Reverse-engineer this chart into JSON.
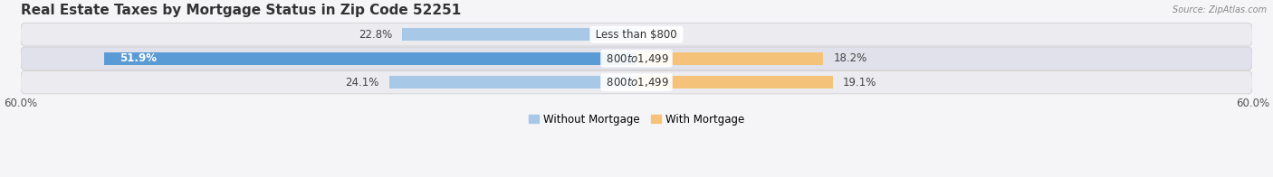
{
  "title": "Real Estate Taxes by Mortgage Status in Zip Code 52251",
  "source": "Source: ZipAtlas.com",
  "rows": [
    {
      "label": "Less than $800",
      "without": 22.8,
      "with": 0.0
    },
    {
      "label": "$800 to $1,499",
      "without": 51.9,
      "with": 18.2
    },
    {
      "label": "$800 to $1,499",
      "without": 24.1,
      "with": 19.1
    }
  ],
  "x_max": 60.0,
  "color_without": "#a8c8e8",
  "color_without_dark": "#5b9bd5",
  "color_with": "#f5c27a",
  "color_with_dark": "#ed9c3a",
  "bar_height": 0.52,
  "row_bg_colors": [
    "#ebebf0",
    "#e0e1ea",
    "#ebebf0"
  ],
  "legend_without": "Without Mortgage",
  "legend_with": "With Mortgage",
  "title_fontsize": 11,
  "label_fontsize": 8.5,
  "tick_fontsize": 8.5,
  "inside_label_threshold": 30
}
